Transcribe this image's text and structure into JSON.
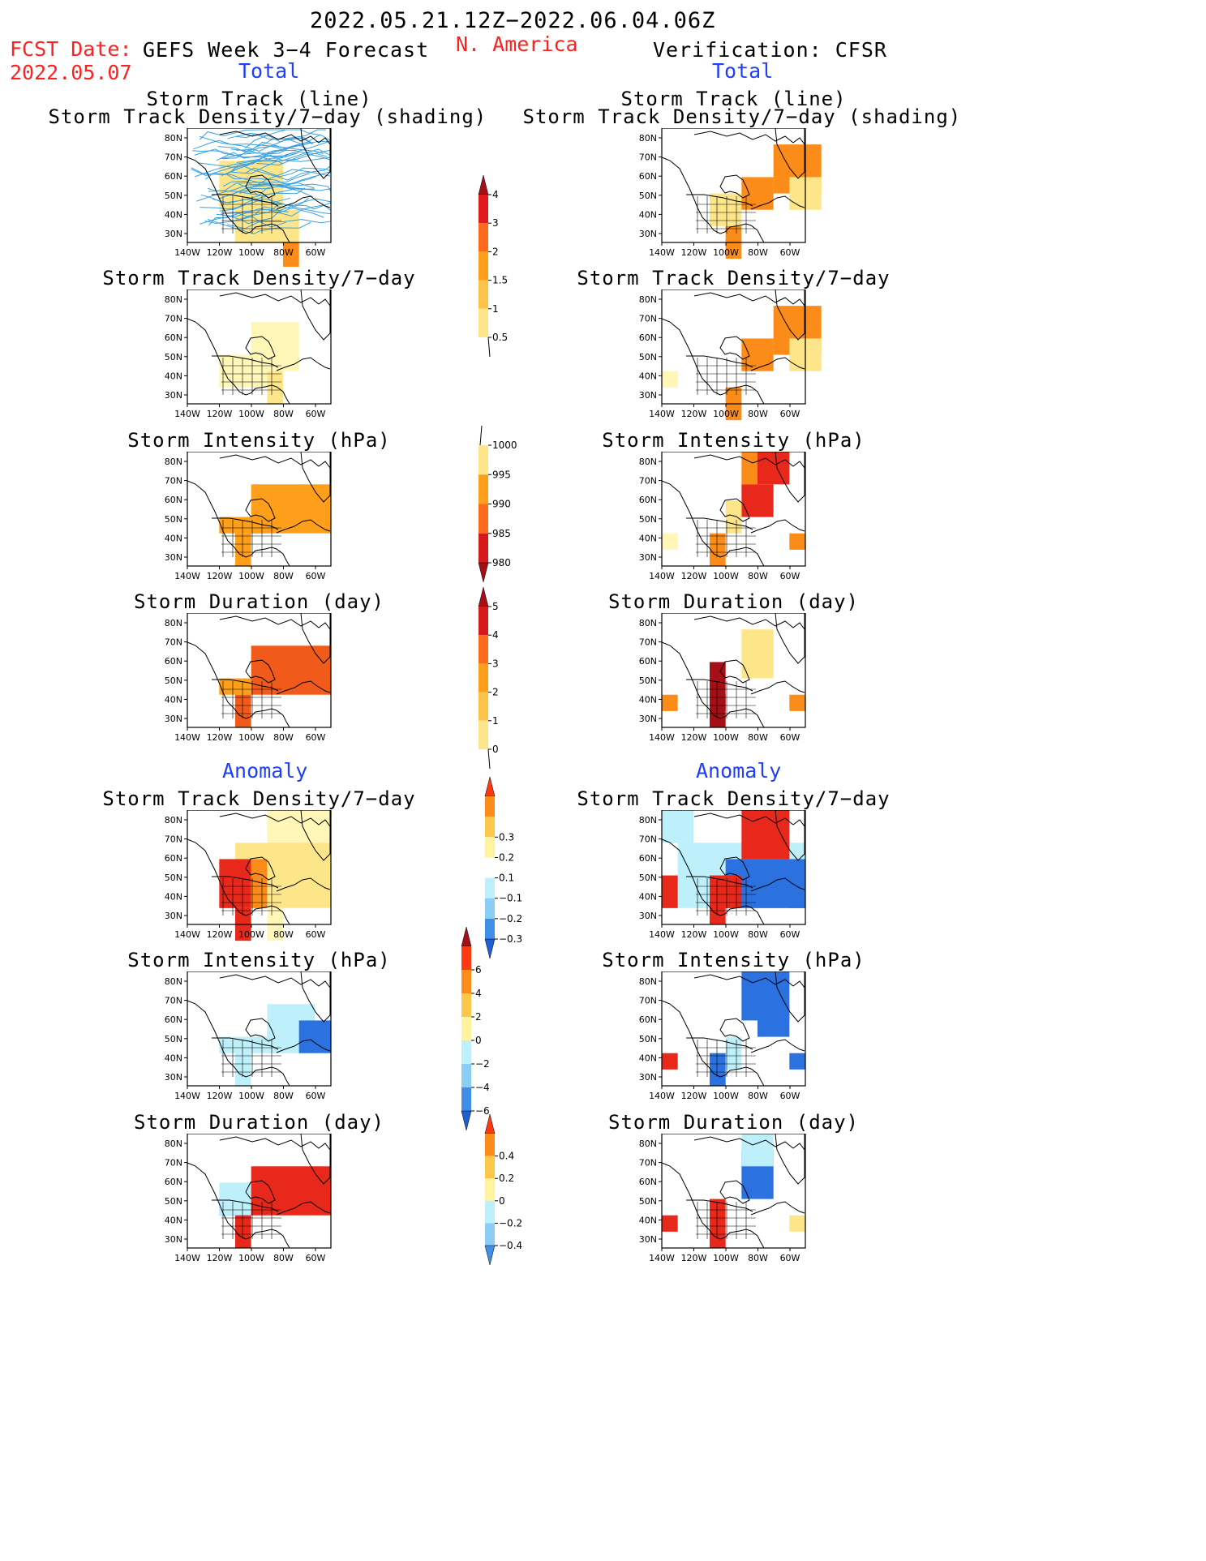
{
  "header": {
    "date_range": "2022.05.21.12Z−2022.06.04.06Z",
    "fcst_label": "FCST Date:",
    "fcst_date": "2022.05.07",
    "left_title": "GEFS Week 3−4 Forecast",
    "center_title": "N. America",
    "right_title": "Verification: CFSR"
  },
  "sections": {
    "total_label": "Total",
    "anomaly_label": "Anomaly"
  },
  "panel_titles": {
    "storm_track_line": "Storm Track (line)",
    "storm_track_shading": "Storm Track Density/7−day (shading)",
    "density": "Storm Track Density/7−day",
    "intensity": "Storm Intensity (hPa)",
    "duration": "Storm Duration (day)"
  },
  "map_axes": {
    "lat_labels": [
      "80N",
      "70N",
      "60N",
      "50N",
      "40N",
      "30N"
    ],
    "lon_labels": [
      "140W",
      "120W",
      "100W",
      "80W",
      "60W"
    ]
  },
  "colorbars": [
    {
      "id": "total-density",
      "labels": [
        "4",
        "3",
        "2",
        "1.5",
        "1",
        "0.5"
      ],
      "colors": [
        "#a50f15",
        "#e31a1c",
        "#fc6a1c",
        "#fd9f1a",
        "#fcc34a",
        "#fde68a",
        "#fff6b8"
      ],
      "tail": "bottom"
    },
    {
      "id": "total-intensity",
      "labels": [
        "1000",
        "995",
        "990",
        "985",
        "980"
      ],
      "colors": [
        "#fff6b8",
        "#fde68a",
        "#fd9f1a",
        "#fc6a1c",
        "#d7191c",
        "#a50f15"
      ],
      "tail": "top"
    },
    {
      "id": "total-duration",
      "labels": [
        "5",
        "4",
        "3",
        "2",
        "1",
        "0"
      ],
      "colors": [
        "#a50f15",
        "#d7191c",
        "#fc6a1c",
        "#fd9f1a",
        "#fcc34a",
        "#fde68a",
        "#fff6b8"
      ],
      "tail": "bottom"
    },
    {
      "id": "anom-density",
      "labels": [
        "0.3",
        "0.2",
        "0.1",
        "−0.1",
        "−0.2",
        "−0.3"
      ],
      "colors": [
        "#ff3a12",
        "#fd8d1a",
        "#fdc84a",
        "#fff3a0",
        "#ffffff",
        "#bdf0fa",
        "#8ccdf6",
        "#3f8fe8",
        "#1f5fd0"
      ],
      "tail": "none"
    },
    {
      "id": "anom-intensity",
      "labels": [
        "6",
        "4",
        "2",
        "0",
        "−2",
        "−4",
        "−6"
      ],
      "colors": [
        "#a50f15",
        "#ff3a12",
        "#fd8d1a",
        "#fdc84a",
        "#fff3a0",
        "#bdf0fa",
        "#8ccdf6",
        "#3f8fe8",
        "#1f5fd0"
      ],
      "tail": "none"
    },
    {
      "id": "anom-duration",
      "labels": [
        "0.4",
        "0.2",
        "0",
        "−0.2",
        "−0.4"
      ],
      "colors": [
        "#ff3a12",
        "#fd8d1a",
        "#fdc84a",
        "#fff3a0",
        "#bdf0fa",
        "#8ccdf6",
        "#3f8fe8"
      ],
      "tail": "none"
    }
  ],
  "map_fills": {
    "total_track": [
      [
        "yl",
        2,
        2,
        5,
        4
      ],
      [
        "yl",
        3,
        5,
        6,
        6
      ],
      [
        "or",
        6,
        7,
        6,
        8
      ]
    ],
    "total_track_v": [
      [
        "or",
        7,
        1,
        9,
        3
      ],
      [
        "yl",
        8,
        3,
        9,
        4
      ],
      [
        "or",
        5,
        3,
        6,
        4
      ],
      [
        "or",
        4,
        6,
        4,
        7
      ],
      [
        "yl",
        3,
        4,
        4,
        5
      ]
    ],
    "total_density_f": [
      [
        "ly",
        2,
        4,
        4,
        5
      ],
      [
        "ly",
        4,
        2,
        6,
        4
      ],
      [
        "yl",
        5,
        5,
        5,
        6
      ]
    ],
    "total_density_v": [
      [
        "or",
        7,
        1,
        9,
        3
      ],
      [
        "yl",
        8,
        3,
        9,
        4
      ],
      [
        "or",
        5,
        3,
        6,
        4
      ],
      [
        "or",
        4,
        6,
        4,
        7
      ],
      [
        "ly",
        0,
        5,
        0,
        5
      ]
    ],
    "intensity_f": [
      [
        "lo",
        4,
        2,
        8,
        4
      ],
      [
        "lo",
        2,
        4,
        4,
        4
      ],
      [
        "lo",
        3,
        5,
        3,
        6
      ]
    ],
    "intensity_v": [
      [
        "rd",
        6,
        0,
        7,
        1
      ],
      [
        "or",
        5,
        0,
        5,
        1
      ],
      [
        "rd",
        5,
        2,
        6,
        3
      ],
      [
        "ly",
        0,
        5,
        0,
        5
      ],
      [
        "yl",
        4,
        3,
        4,
        4
      ],
      [
        "or",
        3,
        5,
        3,
        6
      ],
      [
        "or",
        8,
        5,
        8,
        5
      ]
    ],
    "duration_f": [
      [
        "dr",
        4,
        2,
        8,
        4
      ],
      [
        "lo",
        2,
        4,
        3,
        4
      ],
      [
        "dr",
        3,
        5,
        3,
        6
      ]
    ],
    "duration_v": [
      [
        "or",
        0,
        5,
        0,
        5
      ],
      [
        "dk",
        3,
        3,
        3,
        5
      ],
      [
        "dk",
        3,
        5,
        3,
        6
      ],
      [
        "yl",
        5,
        1,
        6,
        3
      ],
      [
        "or",
        8,
        5,
        8,
        5
      ]
    ],
    "anom_density_f": [
      [
        "ly",
        5,
        0,
        8,
        3
      ],
      [
        "yl",
        3,
        2,
        8,
        5
      ],
      [
        "rd",
        2,
        3,
        3,
        5
      ],
      [
        "or",
        4,
        3,
        4,
        5
      ],
      [
        "ly",
        5,
        6,
        5,
        7
      ],
      [
        "rd",
        3,
        6,
        3,
        7
      ]
    ],
    "anom_density_v": [
      [
        "lb",
        0,
        0,
        1,
        1
      ],
      [
        "lb",
        1,
        2,
        8,
        5
      ],
      [
        "bl",
        4,
        3,
        8,
        5
      ],
      [
        "rd",
        5,
        0,
        7,
        2
      ],
      [
        "rd",
        3,
        4,
        4,
        5
      ],
      [
        "rd",
        0,
        4,
        0,
        5
      ],
      [
        "rd",
        3,
        5,
        3,
        6
      ],
      [
        "bl",
        8,
        4,
        8,
        5
      ]
    ],
    "anom_intensity_f": [
      [
        "lb",
        2,
        4,
        5,
        4
      ],
      [
        "lb",
        5,
        2,
        7,
        4
      ],
      [
        "bl",
        7,
        3,
        8,
        4
      ],
      [
        "lb",
        3,
        5,
        3,
        6
      ]
    ],
    "anom_intensity_v": [
      [
        "bl",
        5,
        0,
        7,
        2
      ],
      [
        "bl",
        6,
        2,
        7,
        3
      ],
      [
        "rd",
        0,
        5,
        0,
        5
      ],
      [
        "lb",
        4,
        4,
        4,
        5
      ],
      [
        "bl",
        3,
        5,
        3,
        6
      ],
      [
        "bl",
        8,
        5,
        8,
        5
      ]
    ],
    "anom_duration_f": [
      [
        "bl",
        2,
        4,
        3,
        4
      ],
      [
        "lb",
        2,
        3,
        4,
        4
      ],
      [
        "rd",
        4,
        2,
        8,
        4
      ],
      [
        "rd",
        3,
        5,
        3,
        6
      ]
    ],
    "anom_duration_v": [
      [
        "bl",
        5,
        1,
        6,
        3
      ],
      [
        "lb",
        5,
        0,
        6,
        1
      ],
      [
        "rd",
        0,
        5,
        0,
        5
      ],
      [
        "rd",
        3,
        4,
        3,
        6
      ],
      [
        "yl",
        8,
        5,
        8,
        5
      ]
    ]
  }
}
